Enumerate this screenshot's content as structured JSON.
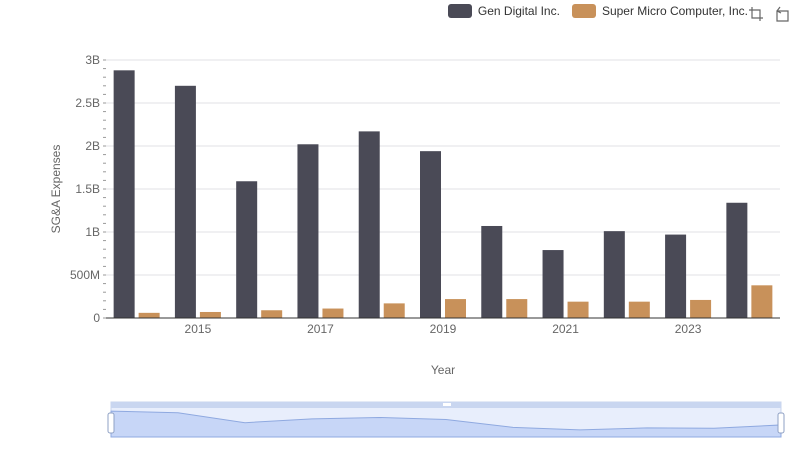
{
  "chart_data": {
    "type": "bar",
    "categories": [
      "2014",
      "2015",
      "2016",
      "2017",
      "2018",
      "2019",
      "2020",
      "2021",
      "2022",
      "2023",
      "2024"
    ],
    "x_tick_labels": [
      "2015",
      "2017",
      "2019",
      "2021",
      "2023"
    ],
    "series": [
      {
        "name": "Gen Digital Inc.",
        "color": "#4a4a56",
        "values": [
          2.88,
          2.7,
          1.59,
          2.02,
          2.17,
          1.94,
          1.07,
          0.79,
          1.01,
          0.97,
          1.34
        ]
      },
      {
        "name": "Super Micro Computer, Inc.",
        "color": "#c8915a",
        "values": [
          0.06,
          0.07,
          0.09,
          0.11,
          0.17,
          0.22,
          0.22,
          0.19,
          0.19,
          0.21,
          0.38
        ]
      }
    ],
    "y_ticks": [
      0,
      0.5,
      1,
      1.5,
      2,
      2.5,
      3
    ],
    "y_tick_labels": [
      "0",
      "500M",
      "1B",
      "1.5B",
      "2B",
      "2.5B",
      "3B"
    ],
    "ylim": [
      0,
      3
    ],
    "ylabel": "SG&A Expenses",
    "xlabel": "Year",
    "legend_position": "top-right",
    "grid": true,
    "data_zoom": true
  },
  "toolbox": {
    "zoom_icon": "zoom-icon",
    "restore_icon": "restore-icon"
  }
}
